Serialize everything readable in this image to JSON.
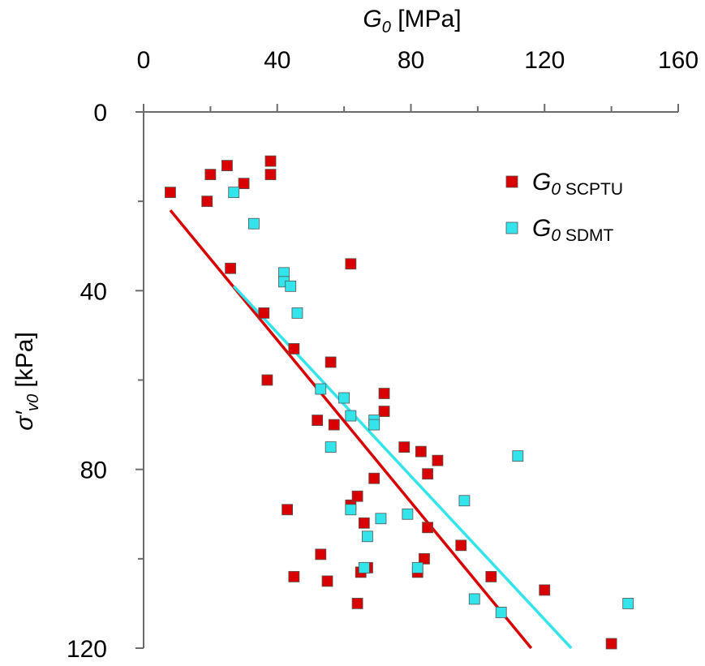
{
  "chart_data": {
    "type": "scatter",
    "x_axis": {
      "label_symbol": "G",
      "label_subscript": "0",
      "label_unit": "[MPa]",
      "position": "top",
      "range": [
        0,
        160
      ],
      "ticks": [
        0,
        40,
        80,
        120,
        160
      ],
      "tick_labels": [
        "0",
        "40",
        "80",
        "120",
        "160"
      ]
    },
    "y_axis": {
      "label_symbol": "σ′",
      "label_subscript": "v0",
      "label_unit": "[kPa]",
      "reversed": true,
      "range": [
        0,
        120
      ],
      "ticks": [
        0,
        40,
        80,
        120
      ],
      "tick_labels": [
        "0",
        "40",
        "80",
        "120"
      ]
    },
    "grid": false,
    "legend_position": "top-right",
    "series": [
      {
        "name": "G0 SCPTU",
        "legend_main": "G",
        "legend_subscript": "0 SCPTU",
        "color": "#d80000",
        "marker": "square",
        "points": [
          [
            8,
            18
          ],
          [
            20,
            14
          ],
          [
            25,
            12
          ],
          [
            19,
            20
          ],
          [
            30,
            16
          ],
          [
            38,
            11
          ],
          [
            38,
            14
          ],
          [
            26,
            35
          ],
          [
            62,
            34
          ],
          [
            36,
            45
          ],
          [
            45,
            53
          ],
          [
            56,
            56
          ],
          [
            37,
            60
          ],
          [
            72,
            63
          ],
          [
            72,
            67
          ],
          [
            52,
            69
          ],
          [
            57,
            70
          ],
          [
            69,
            82
          ],
          [
            78,
            75
          ],
          [
            83,
            76
          ],
          [
            88,
            78
          ],
          [
            85,
            81
          ],
          [
            62,
            88
          ],
          [
            64,
            86
          ],
          [
            43,
            89
          ],
          [
            66,
            92
          ],
          [
            85,
            93
          ],
          [
            53,
            99
          ],
          [
            65,
            103
          ],
          [
            67,
            102
          ],
          [
            84,
            100
          ],
          [
            82,
            103
          ],
          [
            45,
            104
          ],
          [
            55,
            105
          ],
          [
            64,
            110
          ],
          [
            95,
            97
          ],
          [
            104,
            104
          ],
          [
            120,
            107
          ],
          [
            140,
            119
          ]
        ],
        "trend": [
          [
            8,
            22
          ],
          [
            116,
            120
          ]
        ]
      },
      {
        "name": "G0 SDMT",
        "legend_main": "G",
        "legend_subscript": "0 SDMT",
        "color": "#33e4ea",
        "marker": "square",
        "points": [
          [
            27,
            18
          ],
          [
            33,
            25
          ],
          [
            42,
            36
          ],
          [
            42,
            38
          ],
          [
            44,
            39
          ],
          [
            46,
            45
          ],
          [
            53,
            62
          ],
          [
            60,
            64
          ],
          [
            62,
            68
          ],
          [
            69,
            69
          ],
          [
            69,
            70
          ],
          [
            56,
            75
          ],
          [
            62,
            89
          ],
          [
            71,
            91
          ],
          [
            79,
            90
          ],
          [
            67,
            95
          ],
          [
            66,
            102
          ],
          [
            82,
            102
          ],
          [
            96,
            87
          ],
          [
            112,
            77
          ],
          [
            99,
            109
          ],
          [
            107,
            112
          ],
          [
            145,
            110
          ]
        ],
        "trend": [
          [
            27,
            39
          ],
          [
            128,
            120
          ]
        ]
      }
    ]
  }
}
